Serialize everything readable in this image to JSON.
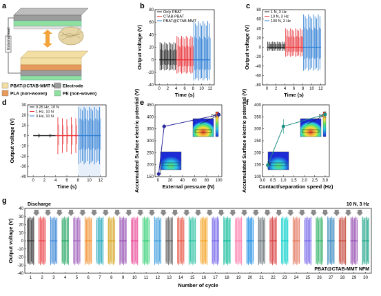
{
  "panels": {
    "a": {
      "letter": "a",
      "side_label": "External load",
      "legend": [
        {
          "label": "PBAT@CTAB-MMT NFM",
          "color": "#f3dfa4"
        },
        {
          "label": "Electrode",
          "color": "#9c9c9c"
        },
        {
          "label": "PLA (non-woven)",
          "color": "#e69a5c"
        },
        {
          "label": "PE (non-woven)",
          "color": "#8fe0a0"
        }
      ]
    },
    "b": {
      "letter": "b"
    },
    "c": {
      "letter": "c"
    },
    "d": {
      "letter": "d"
    },
    "e": {
      "letter": "e",
      "cbar_unit": "[V]"
    },
    "f": {
      "letter": "f",
      "cbar_unit": "[V]"
    },
    "g": {
      "letter": "g",
      "annotation_left": "Discharge",
      "annotation_right": "10 N, 3 Hz",
      "annotation_bottom": "PBAT@CTAB-MMT NFM"
    }
  },
  "chart_data": [
    {
      "panel": "b",
      "type": "line",
      "xlabel": "Time (s)",
      "ylabel": "Output voltage (V)",
      "xlim": [
        -1,
        13
      ],
      "ylim": [
        -40,
        80
      ],
      "xticks": [
        0,
        2,
        4,
        6,
        8,
        10,
        12
      ],
      "yticks": [
        -40,
        -20,
        0,
        20,
        40,
        60,
        80
      ],
      "legend_position": "top-left",
      "series": [
        {
          "name": "Only PBAT",
          "color": "#222222",
          "x_range": [
            0,
            4
          ],
          "peak_pos": 28,
          "peak_neg": -17,
          "pulses": 11
        },
        {
          "name": "CTAB-PBAT",
          "color": "#e8343a",
          "x_range": [
            4,
            8
          ],
          "peak_pos": 38,
          "peak_neg": -22,
          "pulses": 11
        },
        {
          "name": "PBAT@CTAB-MMT",
          "color": "#2f7fd4",
          "x_range": [
            8,
            12
          ],
          "peak_pos": 62,
          "peak_neg": -33,
          "pulses": 11
        }
      ]
    },
    {
      "panel": "c",
      "type": "line",
      "xlabel": "Time (s)",
      "ylabel": "Output voltage (V)",
      "xlim": [
        -1,
        13
      ],
      "ylim": [
        -80,
        80
      ],
      "xticks": [
        0,
        2,
        4,
        6,
        8,
        10,
        12
      ],
      "yticks": [
        -80,
        -60,
        -40,
        -20,
        0,
        20,
        40,
        60,
        80
      ],
      "legend_position": "top-left",
      "series": [
        {
          "name": "1 N, 3 Hz",
          "color": "#222222",
          "x_range": [
            0,
            4
          ],
          "peak_pos": 12,
          "peak_neg": -8,
          "pulses": 11
        },
        {
          "name": "10 N, 3 Hz",
          "color": "#e8343a",
          "x_range": [
            4,
            8
          ],
          "peak_pos": 40,
          "peak_neg": -20,
          "pulses": 11
        },
        {
          "name": "100 N, 3 Hz",
          "color": "#2f7fd4",
          "x_range": [
            8,
            12
          ],
          "peak_pos": 70,
          "peak_neg": -50,
          "pulses": 11
        }
      ]
    },
    {
      "panel": "d",
      "type": "line",
      "xlabel": "Time (s)",
      "ylabel": "Output voltage (V)",
      "xlim": [
        -1,
        13
      ],
      "ylim": [
        -40,
        30
      ],
      "xticks": [
        0,
        2,
        4,
        6,
        8,
        10,
        12
      ],
      "yticks": [
        -40,
        -30,
        -20,
        -10,
        0,
        10,
        20,
        30
      ],
      "legend_position": "top-left",
      "series": [
        {
          "name": "0.25 Hz, 10 N",
          "color": "#222222",
          "x_range": [
            0,
            4
          ],
          "peak_pos": 2,
          "peak_neg": -2,
          "pulses": 2
        },
        {
          "name": "1 Hz, 10 N",
          "color": "#e8343a",
          "x_range": [
            4,
            8
          ],
          "peak_pos": 18,
          "peak_neg": -18,
          "pulses": 5
        },
        {
          "name": "3 Hz, 10 N",
          "color": "#2f7fd4",
          "x_range": [
            8,
            12
          ],
          "peak_pos": 28,
          "peak_neg": -28,
          "pulses": 13
        }
      ]
    },
    {
      "panel": "e",
      "type": "line",
      "xlabel": "External pressure (N)",
      "ylabel": "Accumulated Surface electric potential (V)",
      "xlim": [
        -5,
        105
      ],
      "ylim": [
        150,
        450
      ],
      "xticks": [
        0,
        20,
        40,
        60,
        80,
        100
      ],
      "yticks": [
        150,
        200,
        250,
        300,
        350,
        400,
        450
      ],
      "series": [
        {
          "name": "",
          "color": "#2a2a9a",
          "x": [
            1,
            10,
            100
          ],
          "y": [
            161,
            360,
            409
          ],
          "err": [
            4,
            10,
            12
          ]
        }
      ]
    },
    {
      "panel": "f",
      "type": "line",
      "xlabel": "Contact/separation speed (Hz)",
      "ylabel": "Accumulated Surface electric potential (V)",
      "xlim": [
        0,
        3.2
      ],
      "ylim": [
        100,
        400
      ],
      "xticks": [
        0.0,
        0.5,
        1.0,
        1.5,
        2.0,
        2.5,
        3.0
      ],
      "yticks": [
        100,
        150,
        200,
        250,
        300,
        350,
        400
      ],
      "series": [
        {
          "name": "",
          "color": "#1f8f86",
          "x": [
            0.25,
            1,
            3
          ],
          "y": [
            148,
            310,
            360
          ],
          "err": [
            15,
            30,
            15
          ]
        }
      ]
    },
    {
      "panel": "g",
      "type": "line",
      "xlabel": "Number of cycle",
      "ylabel": "Output voltage (V)",
      "ylim": [
        -40,
        40
      ],
      "yticks": [
        -40,
        -30,
        -20,
        -10,
        0,
        10,
        20,
        30,
        40
      ],
      "categories": [
        "1",
        "2",
        "3",
        "4",
        "5",
        "6",
        "7",
        "8",
        "9",
        "10",
        "11",
        "12",
        "13",
        "14",
        "15",
        "16",
        "17",
        "18",
        "19",
        "20",
        "21",
        "22",
        "23",
        "24",
        "25",
        "26",
        "27",
        "28",
        "29",
        "30"
      ],
      "colors": [
        "#222222",
        "#e8343a",
        "#2f7fd4",
        "#1aa05a",
        "#9b59b6",
        "#f08a24",
        "#17a2b8",
        "#d4a017",
        "#8e44ad",
        "#e84393",
        "#2ecc71",
        "#3498db",
        "#555555",
        "#e74c3c",
        "#1abc9c",
        "#f39c12",
        "#6c5ce7",
        "#00b894",
        "#fd79a8",
        "#0984e3",
        "#636e72",
        "#d63031",
        "#00cec9",
        "#e17055",
        "#6c5ce7",
        "#27ae60",
        "#2980b9",
        "#c0392b",
        "#8e44ad",
        "#16a085"
      ],
      "peak_pos": 30,
      "peak_neg": -30
    }
  ]
}
